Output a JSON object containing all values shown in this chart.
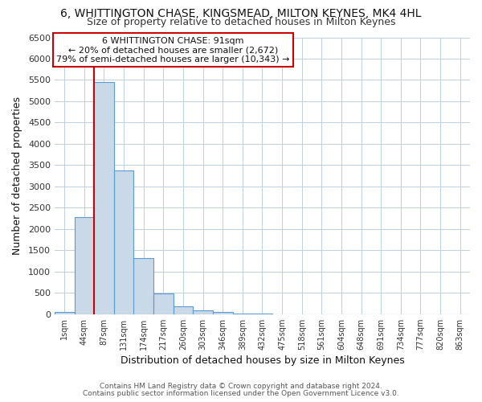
{
  "title": "6, WHITTINGTON CHASE, KINGSMEAD, MILTON KEYNES, MK4 4HL",
  "subtitle": "Size of property relative to detached houses in Milton Keynes",
  "xlabel": "Distribution of detached houses by size in Milton Keynes",
  "ylabel": "Number of detached properties",
  "bar_labels": [
    "1sqm",
    "44sqm",
    "87sqm",
    "131sqm",
    "174sqm",
    "217sqm",
    "260sqm",
    "303sqm",
    "346sqm",
    "389sqm",
    "432sqm",
    "475sqm",
    "518sqm",
    "561sqm",
    "604sqm",
    "648sqm",
    "691sqm",
    "734sqm",
    "777sqm",
    "820sqm",
    "863sqm"
  ],
  "bar_values": [
    60,
    2270,
    5460,
    3380,
    1320,
    480,
    185,
    95,
    45,
    10,
    5,
    2,
    0,
    0,
    0,
    0,
    0,
    0,
    0,
    0,
    0
  ],
  "bar_color": "#c9d9e8",
  "bar_edge_color": "#5b9bd5",
  "vline_index": 2,
  "vline_color": "#cc0000",
  "ylim": [
    0,
    6500
  ],
  "yticks": [
    0,
    500,
    1000,
    1500,
    2000,
    2500,
    3000,
    3500,
    4000,
    4500,
    5000,
    5500,
    6000,
    6500
  ],
  "annotation_title": "6 WHITTINGTON CHASE: 91sqm",
  "annotation_line1": "← 20% of detached houses are smaller (2,672)",
  "annotation_line2": "79% of semi-detached houses are larger (10,343) →",
  "annotation_box_color": "#ffffff",
  "annotation_box_edge": "#cc0000",
  "footer_line1": "Contains HM Land Registry data © Crown copyright and database right 2024.",
  "footer_line2": "Contains public sector information licensed under the Open Government Licence v3.0.",
  "background_color": "#ffffff",
  "grid_color": "#c0cfe0",
  "title_fontsize": 10,
  "subtitle_fontsize": 9
}
